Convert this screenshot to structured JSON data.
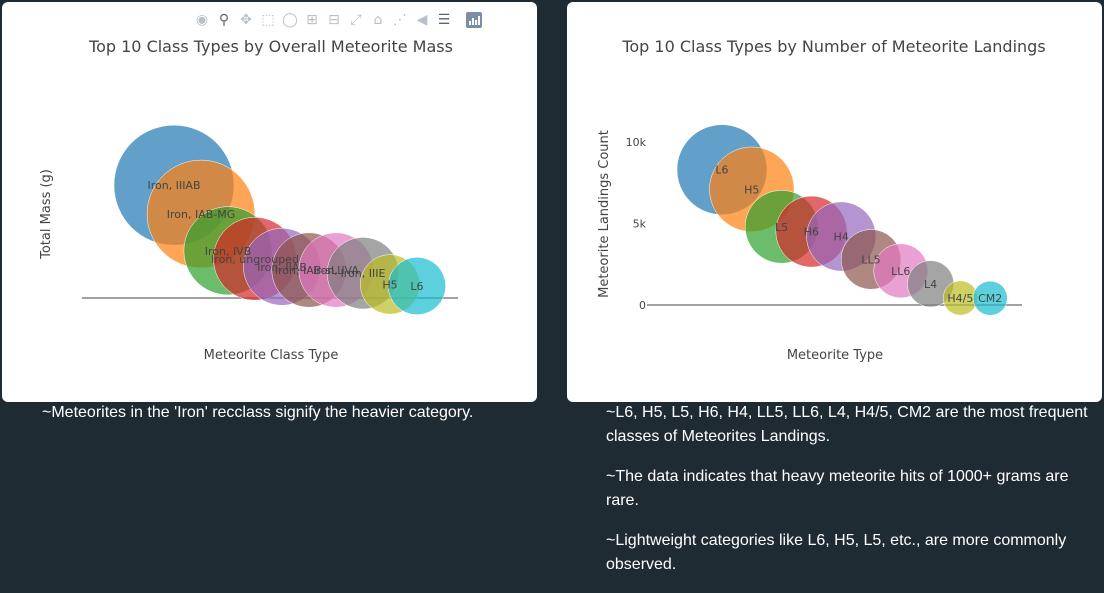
{
  "left_chart": {
    "title": "Top 10 Class Types by Overall Meteorite Mass",
    "xlabel": "Meteorite Class Type",
    "ylabel": "Total Mass (g)"
  },
  "right_chart": {
    "title": "Top 10 Class Types by Number of Meteorite Landings",
    "xlabel": "Meteorite Type",
    "ylabel": "Meteorite Landings Count",
    "ticks": [
      "0",
      "5k",
      "10k"
    ]
  },
  "modebar": {
    "icons": [
      "camera-icon",
      "zoom-icon",
      "pan-icon",
      "box-select-icon",
      "lasso-icon",
      "zoom-in-icon",
      "zoom-out-icon",
      "autoscale-icon",
      "home-icon",
      "spike-lines-icon",
      "hover-closest-icon",
      "hover-compare-icon",
      "plotly-logo-icon"
    ]
  },
  "notes": {
    "left": "~Meteorites in the 'Iron' recclass signify the heavier category.",
    "right": [
      "~L6, H5, L5, H6, H4, LL5, LL6, L4, H4/5, CM2 are the most frequent classes of Meteorites Landings.",
      "~The data indicates that heavy meteorite hits of 1000+ grams are rare.",
      "~Lightweight categories like L6, H5, L5, etc., are more commonly observed."
    ]
  },
  "colors": [
    "#1f77b4",
    "#ff7f0e",
    "#2ca02c",
    "#d62728",
    "#9467bd",
    "#8c564b",
    "#e377c2",
    "#7f7f7f",
    "#bcbd22",
    "#17becf"
  ],
  "chart_data": [
    {
      "type": "scatter",
      "title": "Top 10 Class Types by Overall Meteorite Mass",
      "xlabel": "Meteorite Class Type",
      "ylabel": "Total Mass (g)",
      "categories": [
        "Iron, IIIAB",
        "Iron, IAB-MG",
        "Iron, IVB",
        "Iron, ungrouped",
        "Iron, IIAB",
        "Iron, IAB-sLL",
        "Iron, IVA",
        "Iron, IIIE",
        "H5",
        "L6"
      ],
      "values": [
        6.8,
        5.0,
        2.7,
        2.2,
        1.7,
        1.5,
        1.5,
        1.3,
        0.6,
        0.5
      ],
      "ylim": [
        0,
        10
      ]
    },
    {
      "type": "scatter",
      "title": "Top 10 Class Types by Number of Meteorite Landings",
      "xlabel": "Meteorite Type",
      "ylabel": "Meteorite Landings Count",
      "categories": [
        "L6",
        "H5",
        "L5",
        "H6",
        "H4",
        "LL5",
        "LL6",
        "L4",
        "H4/5",
        "CM2"
      ],
      "values": [
        8300,
        7100,
        4800,
        4500,
        4200,
        2800,
        2100,
        1300,
        430,
        420
      ],
      "ylim": [
        0,
        10000
      ]
    }
  ]
}
